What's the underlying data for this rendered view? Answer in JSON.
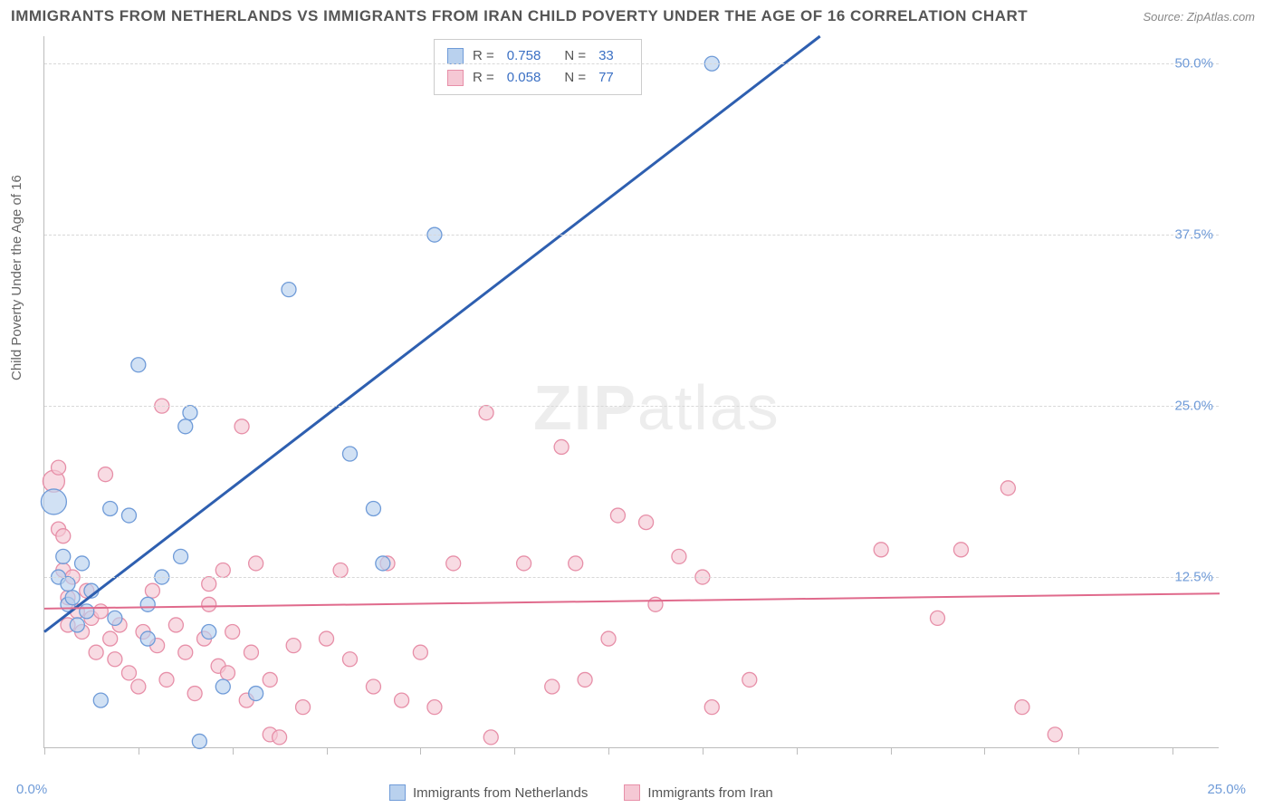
{
  "title": "IMMIGRANTS FROM NETHERLANDS VS IMMIGRANTS FROM IRAN CHILD POVERTY UNDER THE AGE OF 16 CORRELATION CHART",
  "source_label": "Source: ZipAtlas.com",
  "y_axis_label": "Child Poverty Under the Age of 16",
  "watermark_a": "ZIP",
  "watermark_b": "atlas",
  "chart": {
    "type": "scatter",
    "xlim": [
      0,
      25
    ],
    "ylim": [
      0,
      52
    ],
    "x_ticks_pct": [
      0,
      2,
      4,
      6,
      8,
      10,
      12,
      14,
      16,
      18,
      20,
      22,
      24
    ],
    "y_gridlines": [
      12.5,
      25.0,
      37.5,
      50.0
    ],
    "y_tick_labels": [
      "12.5%",
      "25.0%",
      "37.5%",
      "50.0%"
    ],
    "x_tick_left": "0.0%",
    "x_tick_right": "25.0%",
    "background_color": "#ffffff",
    "grid_color": "#d8d8d8",
    "series": [
      {
        "name": "Immigrants from Netherlands",
        "fill": "#b9d1ee",
        "stroke": "#6f9bd8",
        "trend_stroke": "#2e5fb0",
        "trend_width": 3,
        "r": 0.758,
        "n": 33,
        "trend": {
          "x1": 0,
          "y1": 8.5,
          "x2": 16.5,
          "y2": 52
        },
        "points": [
          {
            "x": 0.2,
            "y": 18.0,
            "r": 14
          },
          {
            "x": 0.3,
            "y": 12.5,
            "r": 8
          },
          {
            "x": 0.4,
            "y": 14.0,
            "r": 8
          },
          {
            "x": 0.5,
            "y": 10.5,
            "r": 8
          },
          {
            "x": 0.5,
            "y": 12.0,
            "r": 8
          },
          {
            "x": 0.6,
            "y": 11.0,
            "r": 8
          },
          {
            "x": 0.7,
            "y": 9.0,
            "r": 8
          },
          {
            "x": 0.8,
            "y": 13.5,
            "r": 8
          },
          {
            "x": 0.9,
            "y": 10.0,
            "r": 8
          },
          {
            "x": 1.0,
            "y": 11.5,
            "r": 8
          },
          {
            "x": 1.2,
            "y": 3.5,
            "r": 8
          },
          {
            "x": 1.4,
            "y": 17.5,
            "r": 8
          },
          {
            "x": 1.5,
            "y": 9.5,
            "r": 8
          },
          {
            "x": 1.8,
            "y": 17.0,
            "r": 8
          },
          {
            "x": 2.0,
            "y": 28.0,
            "r": 8
          },
          {
            "x": 2.2,
            "y": 8.0,
            "r": 8
          },
          {
            "x": 2.2,
            "y": 10.5,
            "r": 8
          },
          {
            "x": 2.5,
            "y": 12.5,
            "r": 8
          },
          {
            "x": 2.9,
            "y": 14.0,
            "r": 8
          },
          {
            "x": 3.0,
            "y": 23.5,
            "r": 8
          },
          {
            "x": 3.1,
            "y": 24.5,
            "r": 8
          },
          {
            "x": 3.3,
            "y": 0.5,
            "r": 8
          },
          {
            "x": 3.5,
            "y": 8.5,
            "r": 8
          },
          {
            "x": 3.8,
            "y": 4.5,
            "r": 8
          },
          {
            "x": 4.5,
            "y": 4.0,
            "r": 8
          },
          {
            "x": 5.2,
            "y": 33.5,
            "r": 8
          },
          {
            "x": 6.5,
            "y": 21.5,
            "r": 8
          },
          {
            "x": 7.0,
            "y": 17.5,
            "r": 8
          },
          {
            "x": 7.2,
            "y": 13.5,
            "r": 8
          },
          {
            "x": 8.3,
            "y": 37.5,
            "r": 8
          },
          {
            "x": 14.2,
            "y": 50.0,
            "r": 8
          }
        ]
      },
      {
        "name": "Immigrants from Iran",
        "fill": "#f5c8d4",
        "stroke": "#e78fa8",
        "trend_stroke": "#e06a8c",
        "trend_width": 2,
        "r": 0.058,
        "n": 77,
        "trend": {
          "x1": 0,
          "y1": 10.2,
          "x2": 25,
          "y2": 11.3
        },
        "points": [
          {
            "x": 0.2,
            "y": 19.5,
            "r": 12
          },
          {
            "x": 0.3,
            "y": 16.0,
            "r": 8
          },
          {
            "x": 0.3,
            "y": 20.5,
            "r": 8
          },
          {
            "x": 0.4,
            "y": 13.0,
            "r": 8
          },
          {
            "x": 0.4,
            "y": 15.5,
            "r": 8
          },
          {
            "x": 0.5,
            "y": 11.0,
            "r": 8
          },
          {
            "x": 0.5,
            "y": 9.0,
            "r": 8
          },
          {
            "x": 0.6,
            "y": 12.5,
            "r": 8
          },
          {
            "x": 0.7,
            "y": 10.0,
            "r": 8
          },
          {
            "x": 0.8,
            "y": 8.5,
            "r": 8
          },
          {
            "x": 0.9,
            "y": 11.5,
            "r": 8
          },
          {
            "x": 1.0,
            "y": 9.5,
            "r": 8
          },
          {
            "x": 1.1,
            "y": 7.0,
            "r": 8
          },
          {
            "x": 1.2,
            "y": 10.0,
            "r": 8
          },
          {
            "x": 1.3,
            "y": 20.0,
            "r": 8
          },
          {
            "x": 1.4,
            "y": 8.0,
            "r": 8
          },
          {
            "x": 1.5,
            "y": 6.5,
            "r": 8
          },
          {
            "x": 1.6,
            "y": 9.0,
            "r": 8
          },
          {
            "x": 1.8,
            "y": 5.5,
            "r": 8
          },
          {
            "x": 2.0,
            "y": 4.5,
            "r": 8
          },
          {
            "x": 2.1,
            "y": 8.5,
            "r": 8
          },
          {
            "x": 2.3,
            "y": 11.5,
            "r": 8
          },
          {
            "x": 2.4,
            "y": 7.5,
            "r": 8
          },
          {
            "x": 2.5,
            "y": 25.0,
            "r": 8
          },
          {
            "x": 2.6,
            "y": 5.0,
            "r": 8
          },
          {
            "x": 2.8,
            "y": 9.0,
            "r": 8
          },
          {
            "x": 3.0,
            "y": 7.0,
            "r": 8
          },
          {
            "x": 3.2,
            "y": 4.0,
            "r": 8
          },
          {
            "x": 3.4,
            "y": 8.0,
            "r": 8
          },
          {
            "x": 3.5,
            "y": 12.0,
            "r": 8
          },
          {
            "x": 3.5,
            "y": 10.5,
            "r": 8
          },
          {
            "x": 3.7,
            "y": 6.0,
            "r": 8
          },
          {
            "x": 3.8,
            "y": 13.0,
            "r": 8
          },
          {
            "x": 3.9,
            "y": 5.5,
            "r": 8
          },
          {
            "x": 4.0,
            "y": 8.5,
            "r": 8
          },
          {
            "x": 4.2,
            "y": 23.5,
            "r": 8
          },
          {
            "x": 4.3,
            "y": 3.5,
            "r": 8
          },
          {
            "x": 4.4,
            "y": 7.0,
            "r": 8
          },
          {
            "x": 4.5,
            "y": 13.5,
            "r": 8
          },
          {
            "x": 4.8,
            "y": 1.0,
            "r": 8
          },
          {
            "x": 4.8,
            "y": 5.0,
            "r": 8
          },
          {
            "x": 5.0,
            "y": 0.8,
            "r": 8
          },
          {
            "x": 5.3,
            "y": 7.5,
            "r": 8
          },
          {
            "x": 5.5,
            "y": 3.0,
            "r": 8
          },
          {
            "x": 6.0,
            "y": 8.0,
            "r": 8
          },
          {
            "x": 6.3,
            "y": 13.0,
            "r": 8
          },
          {
            "x": 6.5,
            "y": 6.5,
            "r": 8
          },
          {
            "x": 7.0,
            "y": 4.5,
            "r": 8
          },
          {
            "x": 7.3,
            "y": 13.5,
            "r": 8
          },
          {
            "x": 7.6,
            "y": 3.5,
            "r": 8
          },
          {
            "x": 8.0,
            "y": 7.0,
            "r": 8
          },
          {
            "x": 8.3,
            "y": 3.0,
            "r": 8
          },
          {
            "x": 8.7,
            "y": 13.5,
            "r": 8
          },
          {
            "x": 9.4,
            "y": 24.5,
            "r": 8
          },
          {
            "x": 9.5,
            "y": 0.8,
            "r": 8
          },
          {
            "x": 10.2,
            "y": 13.5,
            "r": 8
          },
          {
            "x": 10.8,
            "y": 4.5,
            "r": 8
          },
          {
            "x": 11.0,
            "y": 22.0,
            "r": 8
          },
          {
            "x": 11.3,
            "y": 13.5,
            "r": 8
          },
          {
            "x": 11.5,
            "y": 5.0,
            "r": 8
          },
          {
            "x": 12.0,
            "y": 8.0,
            "r": 8
          },
          {
            "x": 12.2,
            "y": 17.0,
            "r": 8
          },
          {
            "x": 12.8,
            "y": 16.5,
            "r": 8
          },
          {
            "x": 13.0,
            "y": 10.5,
            "r": 8
          },
          {
            "x": 13.5,
            "y": 14.0,
            "r": 8
          },
          {
            "x": 14.0,
            "y": 12.5,
            "r": 8
          },
          {
            "x": 14.2,
            "y": 3.0,
            "r": 8
          },
          {
            "x": 15.0,
            "y": 5.0,
            "r": 8
          },
          {
            "x": 17.8,
            "y": 14.5,
            "r": 8
          },
          {
            "x": 19.0,
            "y": 9.5,
            "r": 8
          },
          {
            "x": 19.5,
            "y": 14.5,
            "r": 8
          },
          {
            "x": 20.5,
            "y": 19.0,
            "r": 8
          },
          {
            "x": 20.8,
            "y": 3.0,
            "r": 8
          },
          {
            "x": 21.5,
            "y": 1.0,
            "r": 8
          }
        ]
      }
    ]
  },
  "legend_top": {
    "rows": [
      {
        "swatch_fill": "#b9d1ee",
        "swatch_stroke": "#6f9bd8",
        "r_label": "R =",
        "r_val": "0.758",
        "n_label": "N =",
        "n_val": "33"
      },
      {
        "swatch_fill": "#f5c8d4",
        "swatch_stroke": "#e78fa8",
        "r_label": "R =",
        "r_val": "0.058",
        "n_label": "N =",
        "n_val": "77"
      }
    ]
  },
  "legend_bottom": {
    "items": [
      {
        "swatch_fill": "#b9d1ee",
        "swatch_stroke": "#6f9bd8",
        "label": "Immigrants from Netherlands"
      },
      {
        "swatch_fill": "#f5c8d4",
        "swatch_stroke": "#e78fa8",
        "label": "Immigrants from Iran"
      }
    ]
  }
}
